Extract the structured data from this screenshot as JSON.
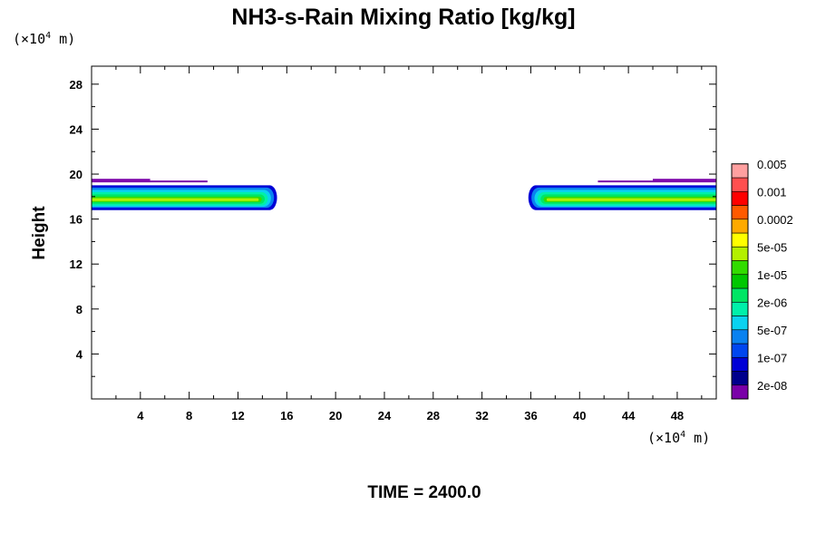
{
  "chart_data": {
    "type": "heatmap",
    "title": "NH3-s-Rain Mixing Ratio [kg/kg]",
    "ylabel": "Height",
    "x_unit": {
      "prefix": "(×10",
      "exp": "4",
      "suffix": " m)"
    },
    "y_unit": {
      "prefix": "(×10",
      "exp": "4",
      "suffix": " m)"
    },
    "xlim": [
      0,
      51.2
    ],
    "ylim": [
      0,
      29.6
    ],
    "x_ticks": [
      4,
      8,
      12,
      16,
      20,
      24,
      28,
      32,
      36,
      40,
      44,
      48
    ],
    "y_ticks": [
      4,
      8,
      12,
      16,
      20,
      24,
      28
    ],
    "time_label": "TIME = 2400.0",
    "colorbar": {
      "colors": [
        "#7a00a8",
        "#00008c",
        "#0000d6",
        "#0046f0",
        "#0a82f0",
        "#0ad2f0",
        "#00f0aa",
        "#00e664",
        "#00c800",
        "#32dc00",
        "#b4f000",
        "#ffff00",
        "#ffaa00",
        "#ff5a00",
        "#ff0000",
        "#ff5050",
        "#ffa0a0"
      ],
      "labels": [
        "2e-08",
        "1e-07",
        "5e-07",
        "2e-06",
        "1e-05",
        "5e-05",
        "0.0002",
        "0.001",
        "0.005"
      ]
    },
    "regions": [
      {
        "side": "left",
        "x_edge": 15.2,
        "y_bottom": 16.8,
        "y_top": 19.0
      },
      {
        "side": "right",
        "x_edge": 35.8,
        "y_bottom": 16.8,
        "y_top": 19.0
      }
    ],
    "layers": [
      {
        "color": "#0000d6",
        "y0": 16.8,
        "y1": 19.0
      },
      {
        "color": "#0a82f0",
        "y0": 17.0,
        "y1": 18.8
      },
      {
        "color": "#0ad2f0",
        "y0": 17.1,
        "y1": 18.6
      },
      {
        "color": "#00f0aa",
        "y0": 17.2,
        "y1": 18.4
      },
      {
        "color": "#00e664",
        "y0": 17.35,
        "y1": 18.2
      },
      {
        "color": "#32dc00",
        "y0": 17.5,
        "y1": 18.0
      },
      {
        "color": "#b4f000",
        "y0": 17.6,
        "y1": 17.85
      }
    ],
    "thin_layers": [
      {
        "color": "#7a00a8",
        "y": 19.5,
        "x0": 0,
        "x1": 4.8
      },
      {
        "color": "#7a00a8",
        "y": 19.35,
        "x0": 0,
        "x1": 9.5
      },
      {
        "color": "#7a00a8",
        "y": 19.5,
        "x0": 46.0,
        "x1": 51.2
      },
      {
        "color": "#7a00a8",
        "y": 19.35,
        "x0": 41.5,
        "x1": 51.2
      }
    ]
  }
}
